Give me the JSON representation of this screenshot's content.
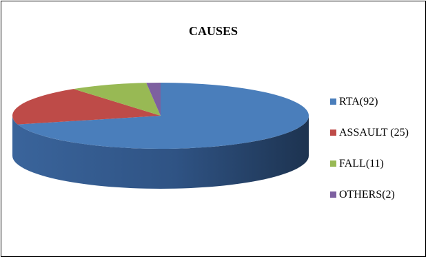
{
  "chart_data": {
    "type": "pie",
    "title": "CAUSES",
    "categories": [
      "RTA(92)",
      "ASSAULT (25)",
      "FALL(11)",
      "OTHERS(2)"
    ],
    "values": [
      92,
      25,
      11,
      2
    ],
    "colors": [
      "#4a7ebb",
      "#be4b48",
      "#98b954",
      "#7d60a0"
    ],
    "legend_position": "right",
    "style": "3d"
  }
}
